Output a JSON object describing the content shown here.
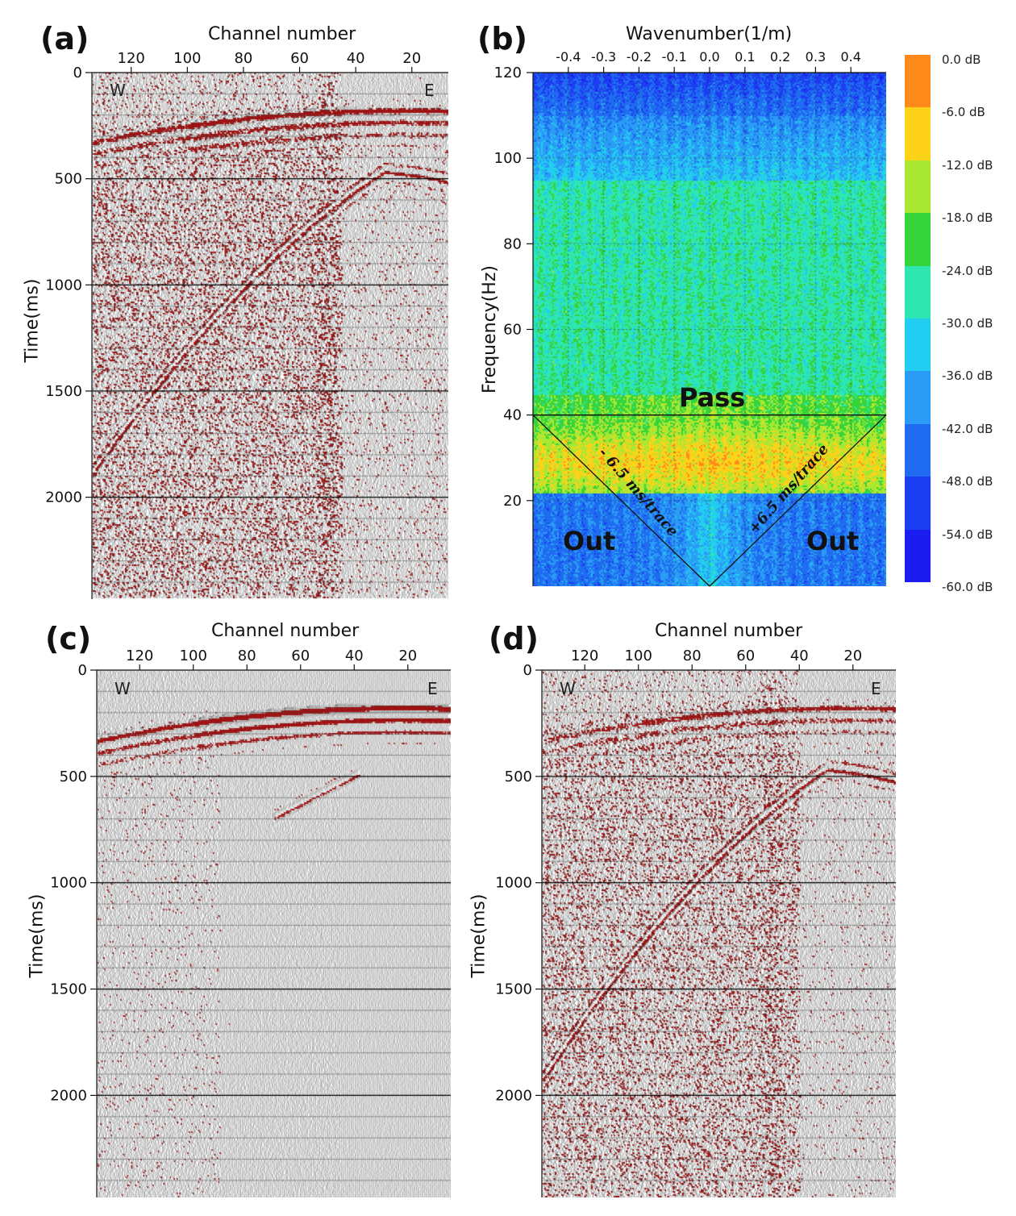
{
  "chart_data": [
    {
      "id": "a",
      "panel_label": "(a)",
      "type": "heatmap",
      "description_kind": "seismic shot gather",
      "xlabel": "Channel number",
      "ylabel": "Time(ms)",
      "x_ticks": [
        120,
        100,
        80,
        60,
        40,
        20
      ],
      "y_ticks": [
        0,
        500,
        1000,
        1500,
        2000
      ],
      "x_range": [
        134,
        7
      ],
      "y_range": [
        0,
        2480
      ],
      "west_label": "W",
      "east_label": "E"
    },
    {
      "id": "b",
      "panel_label": "(b)",
      "type": "heatmap",
      "xlabel": "Wavenumber(1/m)",
      "ylabel": "Frequency(Hz)",
      "x_ticks": [
        -0.4,
        -0.3,
        -0.2,
        -0.1,
        0.0,
        0.1,
        0.2,
        0.3,
        0.4
      ],
      "x_tick_labels": [
        "-0.4",
        "-0.3",
        "-0.2",
        "-0.1",
        "0.0",
        "0.1",
        "0.2",
        "0.3",
        "0.4"
      ],
      "y_ticks": [
        20,
        40,
        60,
        80,
        100,
        120
      ],
      "x_range": [
        -0.5,
        0.5
      ],
      "y_range": [
        0,
        120
      ],
      "grid": true,
      "filter_lines": [
        {
          "from": [
            -0.5,
            40
          ],
          "to": [
            0.0,
            0
          ]
        },
        {
          "from": [
            0.0,
            0
          ],
          "to": [
            0.5,
            40
          ]
        },
        {
          "from": [
            -0.5,
            40
          ],
          "to": [
            0.5,
            40
          ]
        }
      ],
      "region_labels": {
        "pass": "Pass",
        "out_left": "Out",
        "out_right": "Out"
      },
      "slope_labels": {
        "left": "- 6.5 ms/trace",
        "right": "+6.5 ms/trace"
      },
      "colorbar": {
        "unit": "dB",
        "labels": [
          "0.0 dB",
          "-6.0 dB",
          "-12.0 dB",
          "-18.0 dB",
          "-24.0 dB",
          "-30.0 dB",
          "-36.0 dB",
          "-42.0 dB",
          "-48.0 dB",
          "-54.0 dB",
          "-60.0 dB"
        ],
        "colors": [
          "#ff8a1c",
          "#ffd21a",
          "#a8e832",
          "#35d43a",
          "#2ee6b0",
          "#22cdf2",
          "#2a9cf5",
          "#1f6cf0",
          "#1d3ef0",
          "#1b1df0"
        ]
      }
    },
    {
      "id": "c",
      "panel_label": "(c)",
      "type": "heatmap",
      "xlabel": "Channel number",
      "ylabel": "Time(ms)",
      "x_ticks": [
        120,
        100,
        80,
        60,
        40,
        20
      ],
      "y_ticks": [
        0,
        500,
        1000,
        1500,
        2000
      ],
      "x_range": [
        136,
        4
      ],
      "y_range": [
        0,
        2480
      ],
      "west_label": "W",
      "east_label": "E"
    },
    {
      "id": "d",
      "panel_label": "(d)",
      "type": "heatmap",
      "xlabel": "Channel number",
      "ylabel": "Time(ms)",
      "x_ticks": [
        120,
        100,
        80,
        60,
        40,
        20
      ],
      "y_ticks": [
        0,
        500,
        1000,
        1500,
        2000
      ],
      "x_range": [
        136,
        4
      ],
      "y_range": [
        0,
        2480
      ],
      "west_label": "W",
      "east_label": "E"
    }
  ],
  "colors": {
    "wiggle_fill": "#9e1414",
    "axis": "#111111"
  }
}
